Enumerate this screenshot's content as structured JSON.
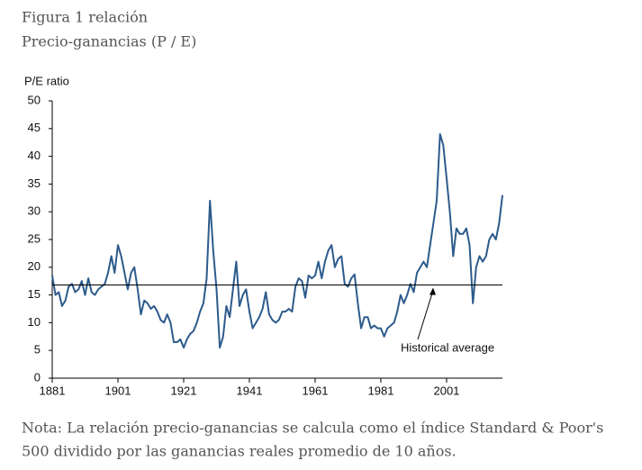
{
  "chart_data": {
    "type": "line",
    "title": "Figura 1 relación",
    "subtitle": "Precio-ganancias (P / E)",
    "y_label": "P/E ratio",
    "note": [
      "Nota: La relación precio-ganancias se calcula como el índice Standard & Poor's",
      "500 dividido por las ganancias reales promedio de 10 años."
    ],
    "color": "#2d5b8c",
    "x": [
      1881,
      1882,
      1883,
      1884,
      1885,
      1886,
      1887,
      1888,
      1889,
      1890,
      1891,
      1892,
      1893,
      1894,
      1895,
      1896,
      1897,
      1898,
      1899,
      1900,
      1901,
      1902,
      1903,
      1904,
      1905,
      1906,
      1907,
      1908,
      1909,
      1910,
      1911,
      1912,
      1913,
      1914,
      1915,
      1916,
      1917,
      1918,
      1919,
      1920,
      1921,
      1922,
      1923,
      1924,
      1925,
      1926,
      1927,
      1928,
      1929,
      1930,
      1931,
      1932,
      1933,
      1934,
      1935,
      1936,
      1937,
      1938,
      1939,
      1940,
      1941,
      1942,
      1943,
      1944,
      1945,
      1946,
      1947,
      1948,
      1949,
      1950,
      1951,
      1952,
      1953,
      1954,
      1955,
      1956,
      1957,
      1958,
      1959,
      1960,
      1961,
      1962,
      1963,
      1964,
      1965,
      1966,
      1967,
      1968,
      1969,
      1970,
      1971,
      1972,
      1973,
      1974,
      1975,
      1976,
      1977,
      1978,
      1979,
      1980,
      1981,
      1982,
      1983,
      1984,
      1985,
      1986,
      1987,
      1988,
      1989,
      1990,
      1991,
      1992,
      1993,
      1994,
      1995,
      1996,
      1997,
      1998,
      1999,
      2000,
      2001,
      2002,
      2003,
      2004,
      2005,
      2006,
      2007,
      2008,
      2009,
      2010,
      2011,
      2012,
      2013,
      2014,
      2015,
      2016,
      2017,
      2018
    ],
    "values": [
      18.5,
      15,
      15.5,
      13,
      14,
      16.5,
      17,
      15.5,
      16,
      17.5,
      15,
      18,
      15.5,
      15,
      16,
      16.5,
      17,
      19,
      22,
      19,
      24,
      22,
      19,
      16,
      19,
      20,
      16,
      11.5,
      14,
      13.5,
      12.5,
      13,
      12,
      10.5,
      10,
      11.5,
      10,
      6.5,
      6.5,
      7,
      5.5,
      7,
      8,
      8.5,
      10,
      12,
      13.5,
      18,
      32,
      23,
      16,
      5.5,
      7.5,
      13,
      11,
      16,
      21,
      13,
      15,
      16,
      12,
      9,
      10,
      11,
      12.5,
      15.5,
      11.5,
      10.5,
      10,
      10.5,
      12,
      12,
      12.5,
      12,
      16.5,
      18,
      17.5,
      14.5,
      18.5,
      18,
      18.5,
      21,
      18,
      21,
      23,
      24,
      20,
      21.5,
      22,
      17,
      16.5,
      18,
      18.7,
      13.5,
      9,
      11,
      11,
      9,
      9.5,
      9,
      9,
      7.5,
      9,
      9.5,
      10,
      12,
      15,
      13.5,
      15,
      17,
      15.5,
      19,
      20,
      21,
      20,
      24,
      28,
      32,
      44,
      42,
      36,
      30,
      22,
      27,
      26,
      26,
      27,
      24,
      13.5,
      20,
      22,
      21,
      22,
      25,
      26,
      25,
      28,
      33
    ],
    "xlim": [
      1881,
      2018
    ],
    "xticks": [
      1881,
      1901,
      1921,
      1941,
      1961,
      1981,
      2001
    ],
    "ylim": [
      0,
      50
    ],
    "yticks": [
      0,
      5,
      10,
      15,
      20,
      25,
      30,
      35,
      40,
      45,
      50
    ],
    "hline": {
      "value": 16.8,
      "label": "Historical average"
    }
  }
}
